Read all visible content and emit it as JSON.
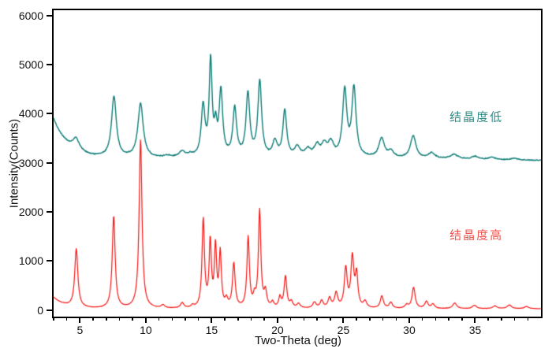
{
  "chart_data": {
    "type": "line",
    "title": "",
    "xlabel": "Two-Theta (deg)",
    "ylabel": "Intensity(Counts)",
    "x_range": [
      3,
      40
    ],
    "y_range": [
      -140,
      6120
    ],
    "grid": false,
    "frame_color": "#000000",
    "background_color": "#ffffff",
    "x_axis": {
      "major_ticks": [
        5,
        10,
        15,
        20,
        25,
        30,
        35
      ],
      "minor_step": 1
    },
    "y_axis": {
      "major_ticks": [
        0,
        1000,
        2000,
        3000,
        4000,
        5000,
        6000
      ]
    },
    "annotations": [
      {
        "text": "结晶度低",
        "x": 35.1,
        "y": 3940,
        "color": "#2e8b86"
      },
      {
        "text": "结晶度高",
        "x": 35.1,
        "y": 1530,
        "color": "#f0534e"
      }
    ],
    "series": [
      {
        "name": "结晶度低",
        "color": "#0f7d77",
        "line_width": 1.4,
        "noise_amplitude": 17,
        "baseline": {
          "level": 3085,
          "decay_amplitude": 810,
          "decay_scale": 1.15,
          "tail_slope_start": 28,
          "tail_slope": -3.2
        },
        "peaks": [
          [
            4.7,
            240,
            0.3
          ],
          [
            7.58,
            1240,
            0.22
          ],
          [
            9.6,
            1110,
            0.24
          ],
          [
            11.6,
            40,
            0.3
          ],
          [
            12.76,
            120,
            0.3
          ],
          [
            13.4,
            50,
            0.2
          ],
          [
            14.35,
            1030,
            0.17
          ],
          [
            14.92,
            1920,
            0.13
          ],
          [
            15.3,
            520,
            0.12
          ],
          [
            15.7,
            1330,
            0.16
          ],
          [
            16.75,
            980,
            0.17
          ],
          [
            17.75,
            1280,
            0.17
          ],
          [
            18.65,
            1540,
            0.17
          ],
          [
            19.8,
            310,
            0.2
          ],
          [
            20.55,
            950,
            0.17
          ],
          [
            21.5,
            200,
            0.25
          ],
          [
            22.3,
            150,
            0.28
          ],
          [
            23.0,
            230,
            0.25
          ],
          [
            23.55,
            230,
            0.25
          ],
          [
            24.05,
            280,
            0.25
          ],
          [
            25.1,
            1350,
            0.19
          ],
          [
            25.8,
            1400,
            0.19
          ],
          [
            27.9,
            390,
            0.25
          ],
          [
            28.6,
            130,
            0.25
          ],
          [
            30.3,
            460,
            0.25
          ],
          [
            31.7,
            115,
            0.3
          ],
          [
            33.4,
            95,
            0.35
          ],
          [
            35.0,
            60,
            0.3
          ],
          [
            36.3,
            50,
            0.3
          ],
          [
            38.0,
            35,
            0.3
          ]
        ]
      },
      {
        "name": "结晶度高",
        "color": "#f81512",
        "line_width": 1.2,
        "noise_amplitude": 5,
        "baseline": {
          "level": 22,
          "decay_amplitude": 230,
          "decay_scale": 0.9,
          "tail_slope_start": 40,
          "tail_slope": 0
        },
        "peaks": [
          [
            4.72,
            1190,
            0.14
          ],
          [
            7.56,
            1880,
            0.13
          ],
          [
            9.6,
            3440,
            0.13
          ],
          [
            11.3,
            60,
            0.15
          ],
          [
            12.76,
            105,
            0.15
          ],
          [
            13.55,
            45,
            0.12
          ],
          [
            14.36,
            1800,
            0.11
          ],
          [
            14.89,
            1330,
            0.1
          ],
          [
            15.29,
            1230,
            0.1
          ],
          [
            15.65,
            1100,
            0.1
          ],
          [
            16.12,
            150,
            0.12
          ],
          [
            16.68,
            900,
            0.12
          ],
          [
            17.77,
            1430,
            0.11
          ],
          [
            18.25,
            190,
            0.1
          ],
          [
            18.64,
            1980,
            0.11
          ],
          [
            19.08,
            310,
            0.12
          ],
          [
            19.62,
            110,
            0.12
          ],
          [
            20.18,
            210,
            0.11
          ],
          [
            20.6,
            640,
            0.12
          ],
          [
            21.05,
            120,
            0.13
          ],
          [
            21.6,
            90,
            0.15
          ],
          [
            22.8,
            120,
            0.15
          ],
          [
            23.35,
            150,
            0.14
          ],
          [
            23.95,
            200,
            0.14
          ],
          [
            24.45,
            300,
            0.14
          ],
          [
            25.18,
            800,
            0.13
          ],
          [
            25.68,
            1010,
            0.13
          ],
          [
            26.0,
            660,
            0.12
          ],
          [
            26.65,
            130,
            0.15
          ],
          [
            27.92,
            250,
            0.14
          ],
          [
            28.6,
            120,
            0.15
          ],
          [
            29.8,
            70,
            0.15
          ],
          [
            30.33,
            430,
            0.14
          ],
          [
            31.3,
            140,
            0.15
          ],
          [
            31.8,
            90,
            0.15
          ],
          [
            33.45,
            115,
            0.18
          ],
          [
            34.95,
            70,
            0.18
          ],
          [
            36.5,
            55,
            0.2
          ],
          [
            37.6,
            75,
            0.2
          ],
          [
            38.9,
            45,
            0.2
          ]
        ]
      }
    ]
  }
}
